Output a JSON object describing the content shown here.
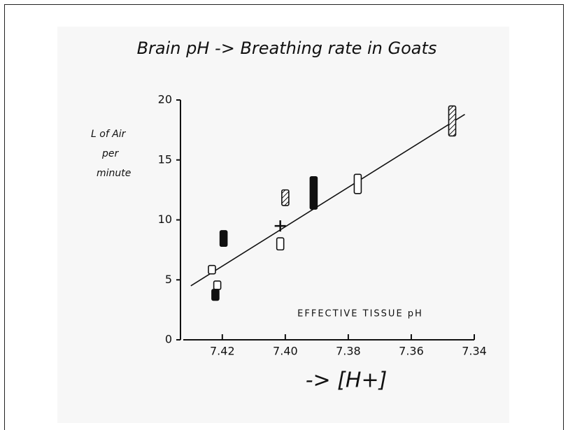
{
  "chart_data": {
    "type": "scatter",
    "title": "Brain pH -> Breathing rate in Goats",
    "y_label": [
      "L of Air",
      "per",
      "minute"
    ],
    "x_label": "EFFECTIVE TISSUE pH",
    "annotation": "-> [H+]",
    "xlim": [
      7.4324,
      7.34
    ],
    "ylim": [
      0,
      20
    ],
    "xticks": [
      7.42,
      {
        "value": 7.4,
        "label": "7.40"
      },
      7.38,
      7.36,
      7.34
    ],
    "yticks": [
      0,
      5,
      10,
      15,
      20
    ],
    "series": [
      {
        "style": "open",
        "color": "#111111",
        "x": [
          7.4233,
          7.4216,
          7.4016,
          7.377
        ],
        "low": [
          5.5,
          4.2,
          7.5,
          12.2
        ],
        "high": [
          6.2,
          4.9,
          8.5,
          13.8
        ]
      },
      {
        "style": "filled",
        "color": "#111111",
        "x": [
          7.4196,
          7.4222,
          7.391
        ],
        "low": [
          7.8,
          3.3,
          10.9
        ],
        "high": [
          9.1,
          4.2,
          13.6
        ]
      },
      {
        "style": "hatched",
        "color": "#111111",
        "x": [
          7.4,
          7.347
        ],
        "low": [
          11.2,
          17.0
        ],
        "high": [
          12.5,
          19.5
        ]
      },
      {
        "style": "cross",
        "color": "#111111",
        "x": [
          7.4016
        ],
        "low": [
          9.5
        ],
        "high": [
          9.5
        ]
      }
    ],
    "fit_line": {
      "color": "#111111",
      "x": [
        7.43,
        7.343
      ],
      "y": [
        4.5,
        18.8
      ]
    }
  }
}
